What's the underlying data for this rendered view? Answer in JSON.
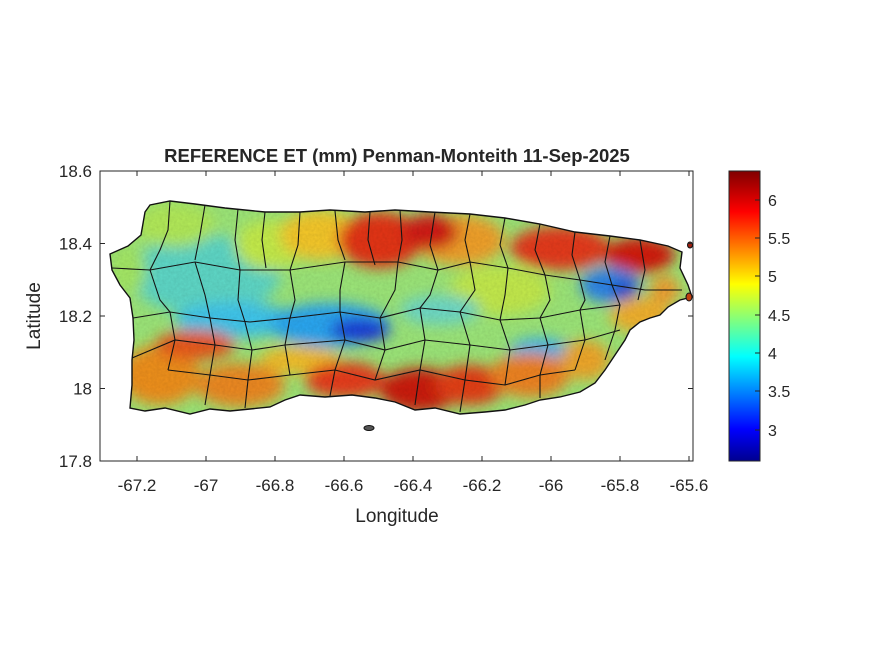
{
  "title": "REFERENCE ET (mm) Penman-Monteith 11-Sep-2025",
  "xlabel": "Longitude",
  "ylabel": "Latitude",
  "xticks": [
    "-67.2",
    "-67",
    "-66.8",
    "-66.6",
    "-66.4",
    "-66.2",
    "-66",
    "-65.8",
    "-65.6"
  ],
  "yticks": [
    "18.6",
    "18.4",
    "18.2",
    "18",
    "17.8"
  ],
  "colorbar": {
    "colormap": "jet",
    "range": [
      2.6,
      6.4
    ],
    "ticks": [
      "6",
      "5.5",
      "5",
      "4.5",
      "4",
      "3.5",
      "3"
    ]
  },
  "map_data": {
    "region": "Puerto Rico",
    "xlim": [
      -67.3,
      -65.58
    ],
    "ylim": [
      17.8,
      18.6
    ],
    "grid": false,
    "borders": "municipality boundaries (black)",
    "pattern": {
      "north_coast_east": "high (~5.8-6.3)",
      "central_mountains": "low (~2.7-4.0)",
      "south_coast": "high (~5.5-6.3)",
      "west_interior": "moderate (~4.0-4.8)",
      "northeast_ridge": "low (~3.0-3.8)"
    }
  }
}
